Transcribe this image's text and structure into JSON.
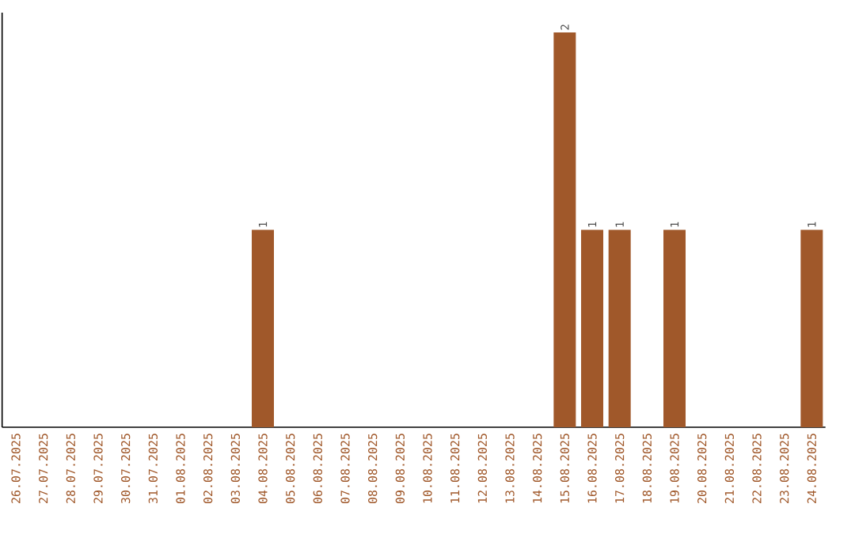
{
  "chart_data": {
    "type": "bar",
    "categories": [
      "26.07.2025",
      "27.07.2025",
      "28.07.2025",
      "29.07.2025",
      "30.07.2025",
      "31.07.2025",
      "01.08.2025",
      "02.08.2025",
      "03.08.2025",
      "04.08.2025",
      "05.08.2025",
      "06.08.2025",
      "07.08.2025",
      "08.08.2025",
      "09.08.2025",
      "10.08.2025",
      "11.08.2025",
      "12.08.2025",
      "13.08.2025",
      "14.08.2025",
      "15.08.2025",
      "16.08.2025",
      "17.08.2025",
      "18.08.2025",
      "19.08.2025",
      "20.08.2025",
      "21.08.2025",
      "22.08.2025",
      "23.08.2025",
      "24.08.2025"
    ],
    "values": [
      0,
      0,
      0,
      0,
      0,
      0,
      0,
      0,
      0,
      1,
      0,
      0,
      0,
      0,
      0,
      0,
      0,
      0,
      0,
      0,
      2,
      1,
      1,
      0,
      1,
      0,
      0,
      0,
      0,
      1
    ],
    "value_labels": [
      null,
      null,
      null,
      null,
      null,
      null,
      null,
      null,
      null,
      "1",
      null,
      null,
      null,
      null,
      null,
      null,
      null,
      null,
      null,
      null,
      "2",
      "1",
      "1",
      null,
      "1",
      null,
      null,
      null,
      null,
      "1"
    ],
    "color": "#a0582a"
  }
}
